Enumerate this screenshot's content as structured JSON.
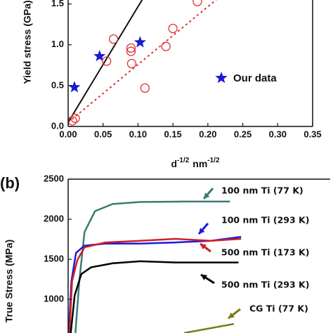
{
  "chart_data": [
    {
      "type": "scatter",
      "y_label": "Yield stress (GPa)",
      "x_label": {
        "base": "d",
        "exp": "-1/2",
        "unit": "nm",
        "unit_exp": "-1/2"
      },
      "xlim": [
        0,
        0.35
      ],
      "ylim": [
        0,
        1.6
      ],
      "xticks": [
        {
          "value": 0,
          "label": "0.00"
        },
        {
          "value": 0.05,
          "label": "0.05"
        },
        {
          "value": 0.1,
          "label": "0.10"
        },
        {
          "value": 0.15,
          "label": "0.15"
        },
        {
          "value": 0.2,
          "label": "0.20"
        },
        {
          "value": 0.25,
          "label": "0.25"
        },
        {
          "value": 0.3,
          "label": "0.30"
        },
        {
          "value": 0.35,
          "label": "0.35"
        }
      ],
      "yticks": [
        {
          "value": 0,
          "label": "0.0"
        },
        {
          "value": 0.5,
          "label": "0.5"
        },
        {
          "value": 1,
          "label": "1.0"
        },
        {
          "value": 1.5,
          "label": "1.5"
        }
      ],
      "series": [
        {
          "name": "Our data",
          "color": "#1a1ad6",
          "marker": "star",
          "x": [
            0.009,
            0.045,
            0.103
          ],
          "values": [
            0.48,
            0.86,
            1.03
          ]
        },
        {
          "color": "#e03030",
          "marker": "circle",
          "x": [
            0.006,
            0.01,
            0.065,
            0.055,
            0.09,
            0.09,
            0.091,
            0.11,
            0.14,
            0.15,
            0.185
          ],
          "values": [
            0.07,
            0.1,
            1.07,
            0.8,
            0.96,
            0.92,
            0.77,
            0.47,
            0.98,
            1.2,
            1.53
          ]
        }
      ],
      "fit_lines": [
        {
          "color": "#111111",
          "dash": false,
          "x": [
            0,
            0.12
          ],
          "values": [
            0.05,
            1.75
          ]
        },
        {
          "color": "#e03030",
          "dash": true,
          "x": [
            0,
            0.24
          ],
          "values": [
            0.05,
            1.75
          ]
        }
      ]
    },
    {
      "type": "line",
      "panel_label": "(b)",
      "y_label": "True Stress (MPa)",
      "xlim": [
        0,
        40
      ],
      "ylim": [
        580,
        2500
      ],
      "yticks": [
        1000,
        1500,
        2000,
        2500
      ],
      "series": [
        {
          "name": "100 nm Ti (77 K)",
          "color": "#3d7a74",
          "x": [
            1.1,
            1.7,
            2.5,
            4.1,
            6.8,
            11,
            17.5,
            24.7
          ],
          "values": [
            580,
            1230,
            1840,
            2100,
            2190,
            2215,
            2220,
            2220
          ]
        },
        {
          "name": "100 nm Ti (293 K)",
          "color": "#1a1ae0",
          "x": [
            0.1,
            0.5,
            1.2,
            2.5,
            5.7,
            11,
            16.4,
            21.8,
            26.4
          ],
          "values": [
            580,
            1230,
            1580,
            1670,
            1695,
            1695,
            1710,
            1730,
            1780
          ]
        },
        {
          "name": "500 nm Ti (173 K)",
          "color": "#d02020",
          "x": [
            0.2,
            0.6,
            1.4,
            2.5,
            5.7,
            11,
            16.4,
            21.8,
            26.4
          ],
          "values": [
            580,
            1230,
            1490,
            1650,
            1710,
            1730,
            1755,
            1730,
            1755
          ]
        },
        {
          "name": "500 nm Ti (293 K)",
          "color": "#000000",
          "x": [
            0.4,
            1,
            2,
            3.5,
            6.8,
            11,
            16.4,
            21.8,
            26
          ],
          "values": [
            580,
            1050,
            1315,
            1400,
            1450,
            1475,
            1460,
            1460,
            1460
          ]
        },
        {
          "name": "CG Ti (77 K)",
          "color": "#7a7a1a",
          "x": [
            17.7,
            25.3
          ],
          "values": [
            580,
            693
          ]
        }
      ]
    }
  ]
}
